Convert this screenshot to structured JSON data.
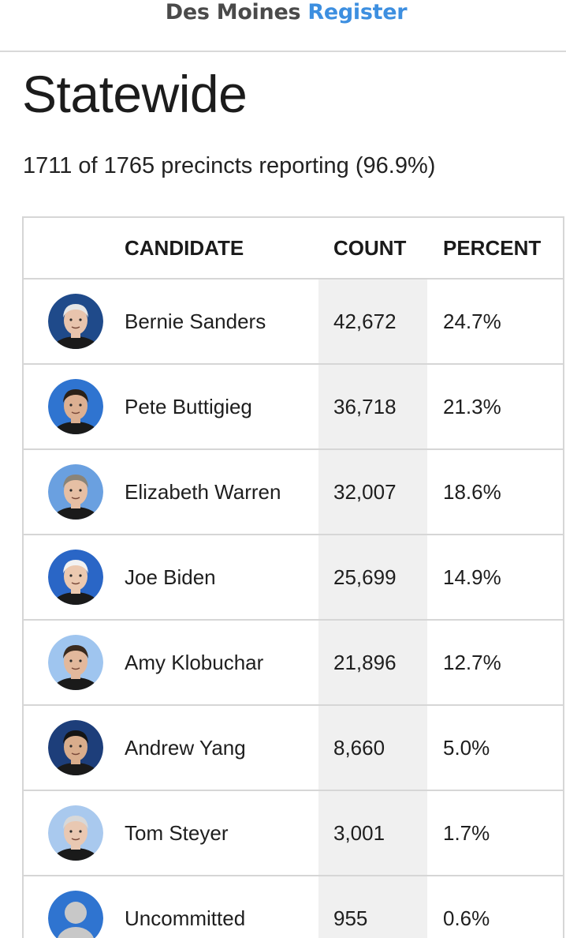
{
  "masthead": {
    "brand_part1": "Des Moines",
    "brand_part2": "Register"
  },
  "page_title": "Statewide",
  "precincts_reporting": "1711 of 1765 precincts reporting (96.9%)",
  "table": {
    "headers": {
      "candidate": "CANDIDATE",
      "count": "COUNT",
      "percent": "PERCENT"
    },
    "rows": [
      {
        "name": "Bernie Sanders",
        "count": "42,672",
        "percent": "24.7%",
        "avatar_icon": "candidate-photo",
        "ring_color": "#1f4a8a"
      },
      {
        "name": "Pete Buttigieg",
        "count": "36,718",
        "percent": "21.3%",
        "avatar_icon": "candidate-photo",
        "ring_color": "#2f74d0"
      },
      {
        "name": "Elizabeth Warren",
        "count": "32,007",
        "percent": "18.6%",
        "avatar_icon": "candidate-photo",
        "ring_color": "#6aa0e0"
      },
      {
        "name": "Joe Biden",
        "count": "25,699",
        "percent": "14.9%",
        "avatar_icon": "candidate-photo",
        "ring_color": "#2a66c6"
      },
      {
        "name": "Amy Klobuchar",
        "count": "21,896",
        "percent": "12.7%",
        "avatar_icon": "candidate-photo",
        "ring_color": "#9fc5ef"
      },
      {
        "name": "Andrew Yang",
        "count": "8,660",
        "percent": "5.0%",
        "avatar_icon": "candidate-photo",
        "ring_color": "#1d3e7a"
      },
      {
        "name": "Tom Steyer",
        "count": "3,001",
        "percent": "1.7%",
        "avatar_icon": "candidate-photo",
        "ring_color": "#a9c9ee"
      },
      {
        "name": "Uncommitted",
        "count": "955",
        "percent": "0.6%",
        "avatar_icon": "person-placeholder-icon",
        "ring_color": "#2f74d0"
      }
    ]
  },
  "colors": {
    "brand_dark": "#4a4a4a",
    "brand_accent": "#3d8fe0",
    "count_column_bg": "#f0f0f0",
    "border": "#d6d6d6"
  }
}
